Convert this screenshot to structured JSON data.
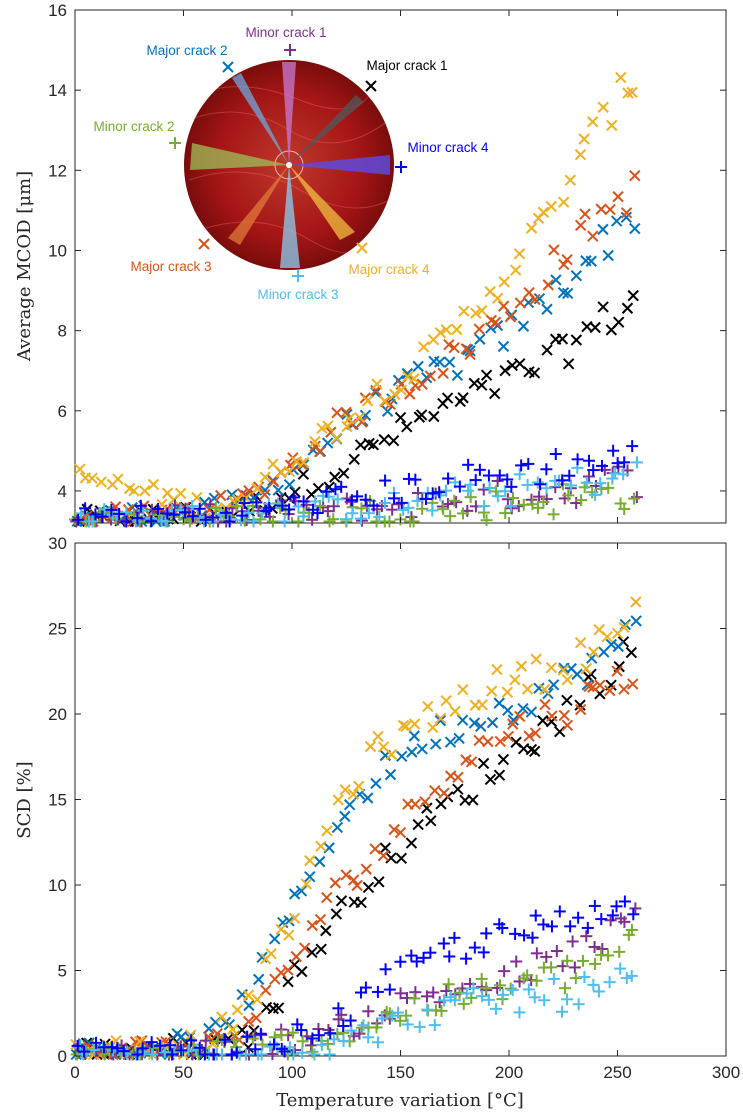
{
  "chart_data": [
    {
      "type": "scatter",
      "title": "",
      "xlabel": "",
      "ylabel": "Average MCOD [μm]",
      "xlim": [
        0,
        300
      ],
      "ylim": [
        3.2,
        16
      ],
      "xticks": [
        0,
        50,
        100,
        150,
        200,
        250,
        300
      ],
      "yticks": [
        4,
        6,
        8,
        10,
        12,
        14,
        16
      ],
      "grid": false,
      "series": [
        {
          "name": "Major crack 1",
          "marker": "x",
          "color": "#000000",
          "x": [
            0,
            60,
            80,
            100,
            120,
            140,
            160,
            180,
            200,
            220,
            240,
            260
          ],
          "y": [
            3.3,
            3.4,
            3.6,
            4.0,
            4.5,
            5.2,
            5.8,
            6.3,
            6.8,
            7.3,
            8.1,
            8.8
          ]
        },
        {
          "name": "Major crack 2",
          "marker": "x",
          "color": "#0072BD",
          "x": [
            0,
            60,
            80,
            100,
            120,
            140,
            160,
            180,
            200,
            220,
            240,
            260
          ],
          "y": [
            3.3,
            3.5,
            3.7,
            4.5,
            5.4,
            6.2,
            6.8,
            7.3,
            8.0,
            8.9,
            10.0,
            11.0
          ]
        },
        {
          "name": "Major crack 3",
          "marker": "x",
          "color": "#D95319",
          "x": [
            0,
            60,
            80,
            100,
            120,
            140,
            160,
            180,
            200,
            220,
            240,
            260
          ],
          "y": [
            3.3,
            3.5,
            3.8,
            4.7,
            5.6,
            6.3,
            6.9,
            7.6,
            8.5,
            9.6,
            10.8,
            11.6
          ]
        },
        {
          "name": "Major crack 4",
          "marker": "x",
          "color": "#EDB120",
          "x": [
            0,
            60,
            80,
            100,
            120,
            140,
            160,
            180,
            200,
            220,
            240,
            260
          ],
          "y": [
            4.4,
            3.6,
            3.9,
            4.8,
            5.6,
            6.5,
            7.2,
            8.3,
            9.5,
            11.0,
            13.0,
            14.5
          ]
        },
        {
          "name": "Minor crack 1",
          "marker": "+",
          "color": "#7E2F8E",
          "x": [
            0,
            60,
            80,
            100,
            120,
            140,
            160,
            180,
            200,
            220,
            240,
            260
          ],
          "y": [
            3.3,
            3.4,
            3.4,
            3.5,
            3.5,
            3.6,
            3.7,
            3.8,
            3.9,
            4.0,
            4.2,
            4.3
          ]
        },
        {
          "name": "Minor crack 2",
          "marker": "+",
          "color": "#77AC30",
          "x": [
            0,
            60,
            80,
            100,
            120,
            140,
            160,
            180,
            200,
            220,
            240,
            260
          ],
          "y": [
            3.3,
            3.3,
            3.4,
            3.4,
            3.4,
            3.5,
            3.5,
            3.6,
            3.7,
            3.8,
            3.9,
            4.0
          ]
        },
        {
          "name": "Minor crack 3",
          "marker": "+",
          "color": "#4DBEEE",
          "x": [
            0,
            60,
            80,
            100,
            120,
            140,
            160,
            180,
            200,
            220,
            240,
            260
          ],
          "y": [
            3.3,
            3.4,
            3.4,
            3.5,
            3.6,
            3.6,
            3.7,
            3.9,
            4.0,
            4.1,
            4.3,
            4.4
          ]
        },
        {
          "name": "Minor crack 4",
          "marker": "+",
          "color": "#0000FF",
          "x": [
            0,
            60,
            80,
            100,
            120,
            140,
            160,
            180,
            200,
            220,
            240,
            260
          ],
          "y": [
            3.4,
            3.4,
            3.5,
            3.6,
            3.8,
            3.9,
            4.1,
            4.3,
            4.4,
            4.6,
            4.7,
            4.8
          ]
        }
      ],
      "inset": {
        "image": "crack-map",
        "labels": [
          {
            "text": "Minor crack 1",
            "color": "#7E2F8E"
          },
          {
            "text": "Major crack 2",
            "color": "#0072BD"
          },
          {
            "text": "Major crack 1",
            "color": "#000000"
          },
          {
            "text": "Minor crack 2",
            "color": "#77AC30"
          },
          {
            "text": "Minor crack 4",
            "color": "#0000FF"
          },
          {
            "text": "Major crack 3",
            "color": "#D95319"
          },
          {
            "text": "Major crack 4",
            "color": "#EDB120"
          },
          {
            "text": "Minor crack 3",
            "color": "#4DBEEE"
          }
        ]
      }
    },
    {
      "type": "scatter",
      "title": "",
      "xlabel": "Temperature variation [°C]",
      "ylabel": "SCD [%]",
      "xlim": [
        0,
        300
      ],
      "ylim": [
        0,
        30
      ],
      "xticks": [
        0,
        50,
        100,
        150,
        200,
        250,
        300
      ],
      "yticks": [
        0,
        5,
        10,
        15,
        20,
        25,
        30
      ],
      "grid": false,
      "series": [
        {
          "name": "Major crack 1",
          "marker": "x",
          "color": "#000000",
          "x": [
            0,
            60,
            80,
            100,
            120,
            140,
            160,
            180,
            200,
            220,
            240,
            260
          ],
          "y": [
            0.3,
            0.5,
            1.2,
            4.5,
            8.0,
            11.0,
            13.5,
            15.5,
            17.5,
            19.5,
            22.0,
            24.0
          ]
        },
        {
          "name": "Major crack 2",
          "marker": "x",
          "color": "#0072BD",
          "x": [
            0,
            60,
            80,
            100,
            120,
            140,
            160,
            180,
            200,
            220,
            240,
            260
          ],
          "y": [
            0.3,
            0.8,
            3.5,
            8.5,
            13.5,
            16.5,
            18.5,
            19.5,
            20.5,
            21.5,
            23.0,
            25.0
          ]
        },
        {
          "name": "Major crack 3",
          "marker": "x",
          "color": "#D95319",
          "x": [
            0,
            60,
            80,
            100,
            120,
            140,
            160,
            180,
            200,
            220,
            240,
            260
          ],
          "y": [
            0.3,
            0.6,
            1.8,
            5.5,
            9.5,
            12.0,
            15.0,
            17.5,
            19.0,
            20.0,
            21.0,
            23.0
          ]
        },
        {
          "name": "Major crack 4",
          "marker": "x",
          "color": "#EDB120",
          "x": [
            0,
            60,
            80,
            100,
            120,
            140,
            160,
            180,
            200,
            220,
            240,
            260
          ],
          "y": [
            0.3,
            0.8,
            3.0,
            8.0,
            14.5,
            18.0,
            19.5,
            21.0,
            22.0,
            22.5,
            24.0,
            26.0
          ]
        },
        {
          "name": "Minor crack 1",
          "marker": "+",
          "color": "#7E2F8E",
          "x": [
            0,
            60,
            80,
            100,
            120,
            140,
            160,
            180,
            200,
            220,
            240,
            260
          ],
          "y": [
            0.2,
            0.3,
            0.6,
            1.0,
            1.5,
            2.5,
            3.5,
            4.0,
            4.5,
            5.5,
            6.5,
            8.0
          ]
        },
        {
          "name": "Minor crack 2",
          "marker": "+",
          "color": "#77AC30",
          "x": [
            0,
            60,
            80,
            100,
            120,
            140,
            160,
            180,
            200,
            220,
            240,
            260
          ],
          "y": [
            0.1,
            0.3,
            0.6,
            0.8,
            1.2,
            2.0,
            3.0,
            3.5,
            4.0,
            4.5,
            5.5,
            7.0
          ]
        },
        {
          "name": "Minor crack 3",
          "marker": "+",
          "color": "#4DBEEE",
          "x": [
            0,
            60,
            80,
            100,
            120,
            140,
            160,
            180,
            200,
            220,
            240,
            260
          ],
          "y": [
            0.1,
            0.2,
            0.3,
            0.5,
            0.8,
            1.5,
            2.5,
            3.0,
            3.3,
            3.5,
            3.8,
            4.5
          ]
        },
        {
          "name": "Minor crack 4",
          "marker": "+",
          "color": "#0000FF",
          "x": [
            0,
            60,
            80,
            100,
            120,
            140,
            160,
            180,
            200,
            220,
            240,
            260
          ],
          "y": [
            0.2,
            0.3,
            0.5,
            1.0,
            2.0,
            4.0,
            5.5,
            6.5,
            7.0,
            7.5,
            8.0,
            9.5
          ]
        }
      ]
    }
  ]
}
